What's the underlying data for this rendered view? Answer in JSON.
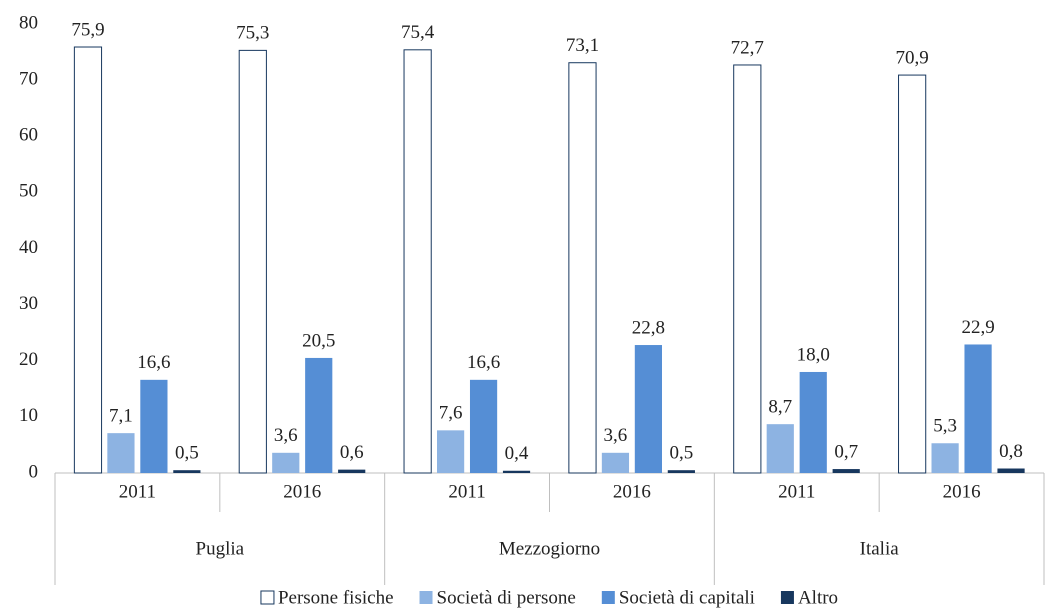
{
  "chart_data": {
    "type": "bar",
    "categories": [
      "2011",
      "2016",
      "2011",
      "2016",
      "2011",
      "2016"
    ],
    "groups": [
      "Puglia",
      "Mezzogiorno",
      "Italia"
    ],
    "series": [
      {
        "name": "Persone fisiche",
        "color": "#ffffff",
        "values": [
          75.9,
          75.3,
          75.4,
          73.1,
          72.7,
          70.9
        ],
        "value_labels": [
          "75,9",
          "75,3",
          "75,4",
          "73,1",
          "72,7",
          "70,9"
        ]
      },
      {
        "name": "Società di persone",
        "color": "#8db3e2",
        "values": [
          7.1,
          3.6,
          7.6,
          3.6,
          8.7,
          5.3
        ],
        "value_labels": [
          "7,1",
          "3,6",
          "7,6",
          "3,6",
          "8,7",
          "5,3"
        ]
      },
      {
        "name": "Società di capitali",
        "color": "#558ed5",
        "values": [
          16.6,
          20.5,
          16.6,
          22.8,
          18.0,
          22.9
        ],
        "value_labels": [
          "16,6",
          "20,5",
          "16,6",
          "22,8",
          "18,0",
          "22,9"
        ]
      },
      {
        "name": "Altro",
        "color": "#17375e",
        "values": [
          0.5,
          0.6,
          0.4,
          0.5,
          0.7,
          0.8
        ],
        "value_labels": [
          "0,5",
          "0,6",
          "0,4",
          "0,5",
          "0,7",
          "0,8"
        ]
      }
    ],
    "ylim": [
      0,
      80
    ],
    "yticks": [
      0,
      10,
      20,
      30,
      40,
      50,
      60,
      70,
      80
    ],
    "grid": false,
    "legend": "bottom"
  }
}
